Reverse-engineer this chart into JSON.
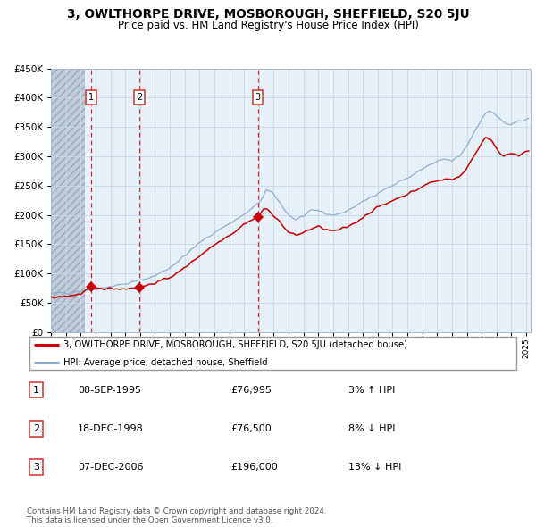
{
  "title1": "3, OWLTHORPE DRIVE, MOSBOROUGH, SHEFFIELD, S20 5JU",
  "title2": "Price paid vs. HM Land Registry's House Price Index (HPI)",
  "legend_line1": "3, OWLTHORPE DRIVE, MOSBOROUGH, SHEFFIELD, S20 5JU (detached house)",
  "legend_line2": "HPI: Average price, detached house, Sheffield",
  "footnote1": "Contains HM Land Registry data © Crown copyright and database right 2024.",
  "footnote2": "This data is licensed under the Open Government Licence v3.0.",
  "grid_color": "#c8d8e8",
  "red_line_color": "#cc0000",
  "blue_line_color": "#88aacc",
  "bg_color": "#e8f0f8",
  "hatch_color": "#c0ccd8",
  "ylim": [
    0,
    450000
  ],
  "yticks": [
    0,
    50000,
    100000,
    150000,
    200000,
    250000,
    300000,
    350000,
    400000,
    450000
  ],
  "xlim_start": 1993.0,
  "xlim_end": 2025.3,
  "hatch_end": 1995.3,
  "trans": [
    {
      "yr": 1995.69,
      "price": 76995,
      "num": "1"
    },
    {
      "yr": 1998.96,
      "price": 76500,
      "num": "2"
    },
    {
      "yr": 2006.93,
      "price": 196000,
      "num": "3"
    }
  ],
  "anchor_blue": [
    [
      1993.0,
      65000
    ],
    [
      1994.0,
      67500
    ],
    [
      1995.0,
      70000
    ],
    [
      1996.0,
      74000
    ],
    [
      1997.0,
      78000
    ],
    [
      1998.0,
      82000
    ],
    [
      1999.0,
      88000
    ],
    [
      2000.0,
      96000
    ],
    [
      2001.0,
      110000
    ],
    [
      2002.0,
      130000
    ],
    [
      2003.0,
      152000
    ],
    [
      2004.0,
      170000
    ],
    [
      2005.0,
      185000
    ],
    [
      2006.0,
      200000
    ],
    [
      2007.0,
      220000
    ],
    [
      2007.5,
      242000
    ],
    [
      2008.0,
      235000
    ],
    [
      2008.5,
      218000
    ],
    [
      2009.0,
      200000
    ],
    [
      2009.5,
      192000
    ],
    [
      2010.0,
      198000
    ],
    [
      2010.5,
      205000
    ],
    [
      2011.0,
      208000
    ],
    [
      2011.5,
      202000
    ],
    [
      2012.0,
      200000
    ],
    [
      2012.5,
      202000
    ],
    [
      2013.0,
      208000
    ],
    [
      2013.5,
      215000
    ],
    [
      2014.0,
      222000
    ],
    [
      2014.5,
      230000
    ],
    [
      2015.0,
      238000
    ],
    [
      2015.5,
      244000
    ],
    [
      2016.0,
      250000
    ],
    [
      2016.5,
      257000
    ],
    [
      2017.0,
      263000
    ],
    [
      2017.5,
      270000
    ],
    [
      2018.0,
      278000
    ],
    [
      2018.5,
      285000
    ],
    [
      2019.0,
      290000
    ],
    [
      2019.5,
      295000
    ],
    [
      2020.0,
      292000
    ],
    [
      2020.5,
      300000
    ],
    [
      2021.0,
      318000
    ],
    [
      2021.5,
      342000
    ],
    [
      2022.0,
      365000
    ],
    [
      2022.5,
      378000
    ],
    [
      2022.8,
      375000
    ],
    [
      2023.0,
      368000
    ],
    [
      2023.5,
      358000
    ],
    [
      2024.0,
      352000
    ],
    [
      2024.5,
      360000
    ],
    [
      2025.0,
      365000
    ]
  ],
  "anchor_red": [
    [
      1993.0,
      58000
    ],
    [
      1994.0,
      61000
    ],
    [
      1995.0,
      65000
    ],
    [
      1995.69,
      76995
    ],
    [
      1996.0,
      74000
    ],
    [
      1997.0,
      74500
    ],
    [
      1998.0,
      74000
    ],
    [
      1998.96,
      76500
    ],
    [
      1999.5,
      80000
    ],
    [
      2000.5,
      88000
    ],
    [
      2001.5,
      100000
    ],
    [
      2002.5,
      120000
    ],
    [
      2003.5,
      140000
    ],
    [
      2004.5,
      158000
    ],
    [
      2005.5,
      173000
    ],
    [
      2006.0,
      185000
    ],
    [
      2006.93,
      196000
    ],
    [
      2007.3,
      210000
    ],
    [
      2007.6,
      208000
    ],
    [
      2008.0,
      200000
    ],
    [
      2008.5,
      185000
    ],
    [
      2009.0,
      170000
    ],
    [
      2009.5,
      165000
    ],
    [
      2010.0,
      170000
    ],
    [
      2010.5,
      176000
    ],
    [
      2011.0,
      180000
    ],
    [
      2011.5,
      175000
    ],
    [
      2012.0,
      172000
    ],
    [
      2012.5,
      175000
    ],
    [
      2013.0,
      180000
    ],
    [
      2013.5,
      187000
    ],
    [
      2014.0,
      196000
    ],
    [
      2014.5,
      205000
    ],
    [
      2015.0,
      213000
    ],
    [
      2015.5,
      218000
    ],
    [
      2016.0,
      225000
    ],
    [
      2016.5,
      230000
    ],
    [
      2017.0,
      236000
    ],
    [
      2017.5,
      241000
    ],
    [
      2018.0,
      248000
    ],
    [
      2018.5,
      255000
    ],
    [
      2019.0,
      258000
    ],
    [
      2019.5,
      262000
    ],
    [
      2020.0,
      260000
    ],
    [
      2020.5,
      265000
    ],
    [
      2021.0,
      280000
    ],
    [
      2021.5,
      302000
    ],
    [
      2022.0,
      322000
    ],
    [
      2022.3,
      332000
    ],
    [
      2022.6,
      330000
    ],
    [
      2022.9,
      318000
    ],
    [
      2023.2,
      308000
    ],
    [
      2023.5,
      300000
    ],
    [
      2024.0,
      305000
    ],
    [
      2024.5,
      300000
    ],
    [
      2025.0,
      308000
    ]
  ],
  "row_data": [
    [
      "1",
      "08-SEP-1995",
      "£76,995",
      "3% ↑ HPI"
    ],
    [
      "2",
      "18-DEC-1998",
      "£76,500",
      "8% ↓ HPI"
    ],
    [
      "3",
      "07-DEC-2006",
      "£196,000",
      "13% ↓ HPI"
    ]
  ]
}
